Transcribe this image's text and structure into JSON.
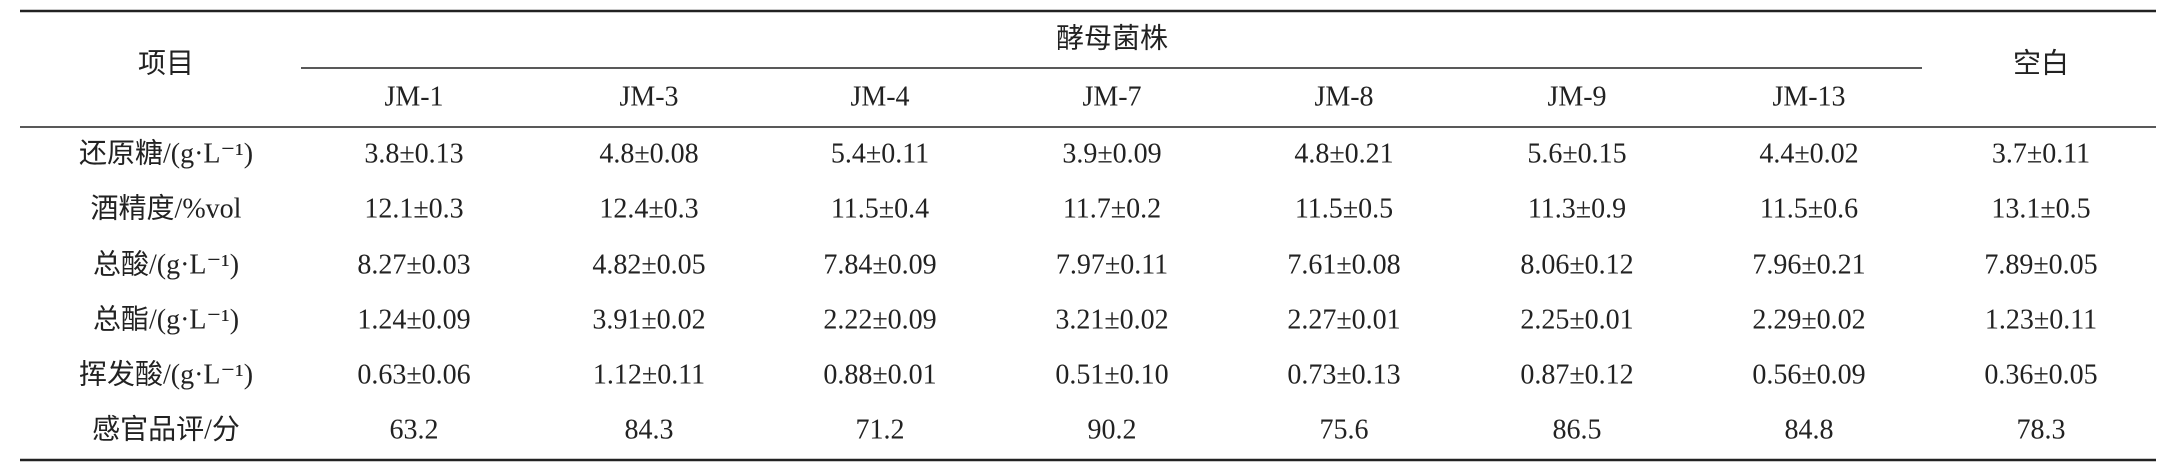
{
  "table": {
    "header": {
      "item": "项目",
      "group": "酵母菌株",
      "blank": "空白",
      "strains": [
        "JM-1",
        "JM-3",
        "JM-4",
        "JM-7",
        "JM-8",
        "JM-9",
        "JM-13"
      ]
    },
    "rows": [
      {
        "label": "还原糖/(g·L⁻¹)",
        "cells": [
          "3.8±0.13",
          "4.8±0.08",
          "5.4±0.11",
          "3.9±0.09",
          "4.8±0.21",
          "5.6±0.15",
          "4.4±0.02",
          "3.7±0.11"
        ]
      },
      {
        "label": "酒精度/%vol",
        "cells": [
          "12.1±0.3",
          "12.4±0.3",
          "11.5±0.4",
          "11.7±0.2",
          "11.5±0.5",
          "11.3±0.9",
          "11.5±0.6",
          "13.1±0.5"
        ]
      },
      {
        "label": "总酸/(g·L⁻¹)",
        "cells": [
          "8.27±0.03",
          "4.82±0.05",
          "7.84±0.09",
          "7.97±0.11",
          "7.61±0.08",
          "8.06±0.12",
          "7.96±0.21",
          "7.89±0.05"
        ]
      },
      {
        "label": "总酯/(g·L⁻¹)",
        "cells": [
          "1.24±0.09",
          "3.91±0.02",
          "2.22±0.09",
          "3.21±0.02",
          "2.27±0.01",
          "2.25±0.01",
          "2.29±0.02",
          "1.23±0.11"
        ]
      },
      {
        "label": "挥发酸/(g·L⁻¹)",
        "cells": [
          "0.63±0.06",
          "1.12±0.11",
          "0.88±0.01",
          "0.51±0.10",
          "0.73±0.13",
          "0.87±0.12",
          "0.56±0.09",
          "0.36±0.05"
        ]
      },
      {
        "label": "感官品评/分",
        "cells": [
          "63.2",
          "84.3",
          "71.2",
          "90.2",
          "75.6",
          "86.5",
          "84.8",
          "78.3"
        ]
      }
    ]
  }
}
